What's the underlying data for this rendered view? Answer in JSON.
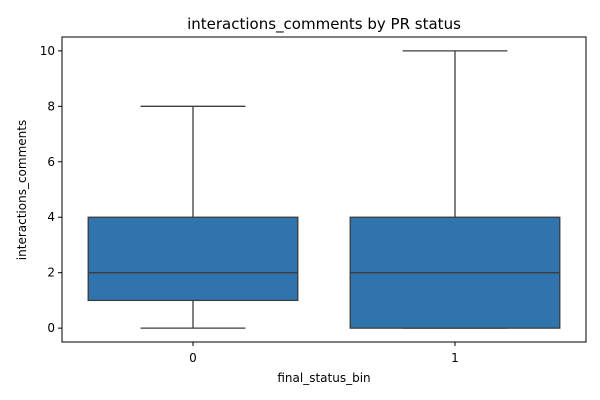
{
  "chart_data": {
    "type": "box",
    "title": "interactions_comments by PR status",
    "xlabel": "final_status_bin",
    "ylabel": "interactions_comments",
    "ylim": [
      -0.5,
      10.5
    ],
    "yticks": [
      0,
      2,
      4,
      6,
      8,
      10
    ],
    "grid": false,
    "box_color": "#2f74ad",
    "line_color": "#3d3d3d",
    "categories": [
      "0",
      "1"
    ],
    "boxes": [
      {
        "category": "0",
        "whisker_low": 0,
        "q1": 1,
        "median": 2,
        "q3": 4,
        "whisker_high": 8
      },
      {
        "category": "1",
        "whisker_low": 0,
        "q1": 0,
        "median": 2,
        "q3": 4,
        "whisker_high": 10
      }
    ]
  }
}
